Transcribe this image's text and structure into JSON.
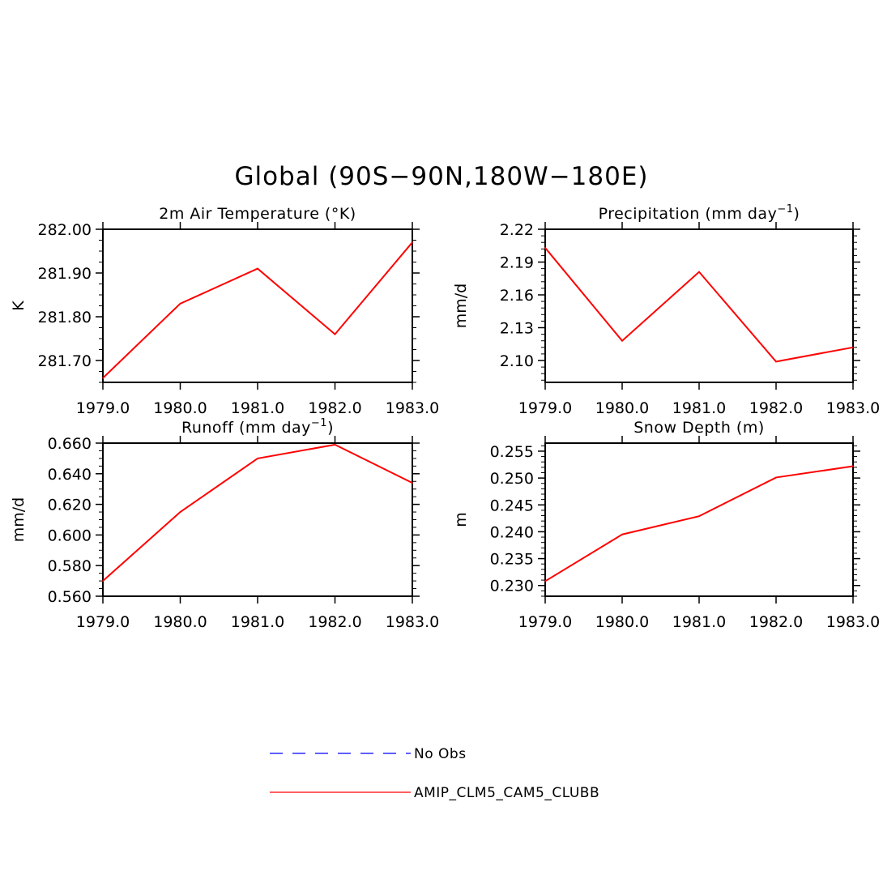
{
  "figure": {
    "title": "Global (90S−90N,180W−180E)"
  },
  "chart_data": [
    {
      "type": "line",
      "title": "2m Air Temperature (°K)",
      "title_superscript": "",
      "title_suffix": "",
      "ylabel": "K",
      "xlim": [
        1979,
        1983
      ],
      "ylim": [
        281.65,
        282.0
      ],
      "xticks": [
        "1979.0",
        "1980.0",
        "1981.0",
        "1982.0",
        "1983.0"
      ],
      "yticks": [
        281.7,
        281.8,
        281.9,
        282.0
      ],
      "yticklabels": [
        "281.70",
        "281.80",
        "281.90",
        "282.00"
      ],
      "yminor": 0.025,
      "x": [
        1979,
        1980,
        1981,
        1982,
        1983
      ],
      "series": [
        {
          "name": "AMIP_CLM5_CAM5_CLUBB",
          "color": "#ff0000",
          "values": [
            281.66,
            281.83,
            281.91,
            281.76,
            281.97
          ]
        }
      ]
    },
    {
      "type": "line",
      "title": "Precipitation (mm day",
      "title_superscript": "−1",
      "title_suffix": ")",
      "ylabel": "mm/d",
      "xlim": [
        1979,
        1983
      ],
      "ylim": [
        2.08,
        2.22
      ],
      "xticks": [
        "1979.0",
        "1980.0",
        "1981.0",
        "1982.0",
        "1983.0"
      ],
      "yticks": [
        2.1,
        2.13,
        2.16,
        2.19,
        2.22
      ],
      "yticklabels": [
        "2.10",
        "2.13",
        "2.16",
        "2.19",
        "2.22"
      ],
      "yminor": 0.006,
      "x": [
        1979,
        1980,
        1981,
        1982,
        1983
      ],
      "series": [
        {
          "name": "AMIP_CLM5_CAM5_CLUBB",
          "color": "#ff0000",
          "values": [
            2.203,
            2.118,
            2.181,
            2.099,
            2.112
          ]
        }
      ]
    },
    {
      "type": "line",
      "title": "Runoff (mm day",
      "title_superscript": "−1",
      "title_suffix": ")",
      "ylabel": "mm/d",
      "xlim": [
        1979,
        1983
      ],
      "ylim": [
        0.56,
        0.66
      ],
      "xticks": [
        "1979.0",
        "1980.0",
        "1981.0",
        "1982.0",
        "1983.0"
      ],
      "yticks": [
        0.56,
        0.58,
        0.6,
        0.62,
        0.64,
        0.66
      ],
      "yticklabels": [
        "0.560",
        "0.580",
        "0.600",
        "0.620",
        "0.640",
        "0.660"
      ],
      "yminor": 0.005,
      "x": [
        1979,
        1980,
        1981,
        1982,
        1983
      ],
      "series": [
        {
          "name": "AMIP_CLM5_CAM5_CLUBB",
          "color": "#ff0000",
          "values": [
            0.57,
            0.615,
            0.65,
            0.659,
            0.634
          ]
        }
      ]
    },
    {
      "type": "line",
      "title": "Snow Depth (m)",
      "title_superscript": "",
      "title_suffix": "",
      "ylabel": "m",
      "xlim": [
        1979,
        1983
      ],
      "ylim": [
        0.228,
        0.2565
      ],
      "xticks": [
        "1979.0",
        "1980.0",
        "1981.0",
        "1982.0",
        "1983.0"
      ],
      "yticks": [
        0.23,
        0.235,
        0.24,
        0.245,
        0.25,
        0.255
      ],
      "yticklabels": [
        "0.230",
        "0.235",
        "0.240",
        "0.245",
        "0.250",
        "0.255"
      ],
      "yminor": 0.001,
      "x": [
        1979,
        1980,
        1981,
        1982,
        1983
      ],
      "series": [
        {
          "name": "AMIP_CLM5_CAM5_CLUBB",
          "color": "#ff0000",
          "values": [
            0.2308,
            0.2395,
            0.2429,
            0.2501,
            0.2522
          ]
        }
      ]
    }
  ],
  "legend": {
    "entries": [
      {
        "label": "No Obs",
        "color": "#0000ff",
        "style": "dashed"
      },
      {
        "label": "AMIP_CLM5_CAM5_CLUBB",
        "color": "#ff0000",
        "style": "solid"
      }
    ]
  }
}
